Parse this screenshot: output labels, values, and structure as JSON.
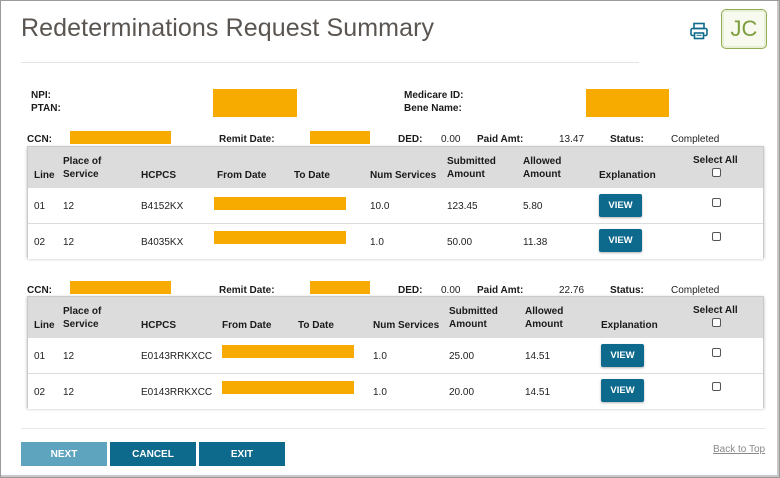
{
  "page": {
    "title": "Redeterminations Request Summary",
    "avatar_initials": "JC"
  },
  "header_info": {
    "npi_label": "NPI:",
    "ptan_label": "PTAN:",
    "medicare_id_label": "Medicare ID:",
    "bene_name_label": "Bene Name:"
  },
  "columns": {
    "line": "Line",
    "place_of_service": "Place of Service",
    "place_of_service_l1": "Place of",
    "place_of_service_l2": "Service",
    "hcpcs": "HCPCS",
    "from_date": "From Date",
    "to_date": "To Date",
    "num_services": "Num Services",
    "submitted_l1": "Submitted",
    "submitted_l2": "Amount",
    "allowed_l1": "Allowed",
    "allowed_l2": "Amount",
    "explanation": "Explanation",
    "select_all": "Select All"
  },
  "claims": [
    {
      "ccn_label": "CCN:",
      "remit_date_label": "Remit Date:",
      "ded_label": "DED:",
      "ded": "0.00",
      "paid_amt_label": "Paid Amt:",
      "paid_amt": "13.47",
      "status_label": "Status:",
      "status": "Completed",
      "lines": [
        {
          "line": "01",
          "pos": "12",
          "hcpcs": "B4152KX",
          "num_services": "10.0",
          "submitted": "123.45",
          "allowed": "5.80",
          "view_label": "VIEW",
          "selected": false
        },
        {
          "line": "02",
          "pos": "12",
          "hcpcs": "B4035KX",
          "num_services": "1.0",
          "submitted": "50.00",
          "allowed": "11.38",
          "view_label": "VIEW",
          "selected": false
        }
      ]
    },
    {
      "ccn_label": "CCN:",
      "remit_date_label": "Remit Date:",
      "ded_label": "DED:",
      "ded": "0.00",
      "paid_amt_label": "Paid Amt:",
      "paid_amt": "22.76",
      "status_label": "Status:",
      "status": "Completed",
      "lines": [
        {
          "line": "01",
          "pos": "12",
          "hcpcs": "E0143RRKXCC",
          "num_services": "1.0",
          "submitted": "25.00",
          "allowed": "14.51",
          "view_label": "VIEW",
          "selected": false
        },
        {
          "line": "02",
          "pos": "12",
          "hcpcs": "E0143RRKXCC",
          "num_services": "1.0",
          "submitted": "20.00",
          "allowed": "14.51",
          "view_label": "VIEW",
          "selected": false
        }
      ]
    }
  ],
  "footer": {
    "next_label": "NEXT",
    "cancel_label": "CANCEL",
    "exit_label": "EXIT",
    "back_to_top_label": "Back to Top"
  },
  "colors": {
    "accent": "#0e6a8c",
    "next_disabled": "#5fa4be",
    "redaction": "#f7aa00",
    "avatar_border": "#8fae52"
  },
  "icons": {
    "print": "printer-icon"
  }
}
